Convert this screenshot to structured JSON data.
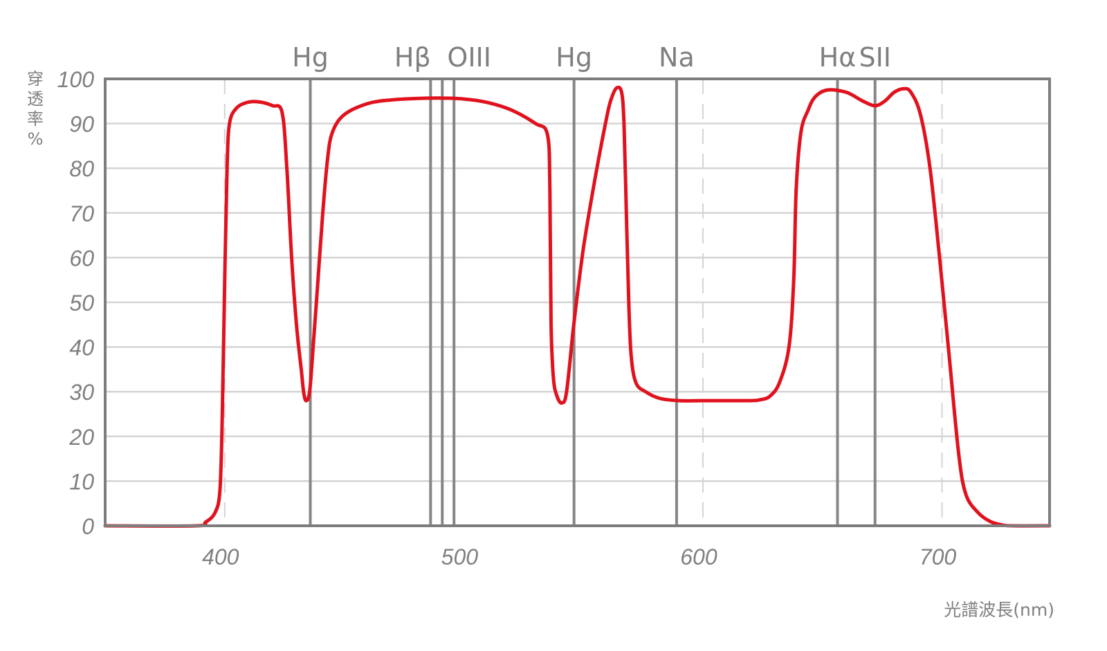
{
  "chart_data": {
    "type": "line",
    "xlabel": "光譜波長(nm)",
    "ylabel": "穿透率%",
    "xlim": [
      350,
      745
    ],
    "ylim": [
      0,
      100
    ],
    "x_ticks": [
      400,
      500,
      600,
      700
    ],
    "y_ticks": [
      0,
      10,
      20,
      30,
      40,
      50,
      60,
      70,
      80,
      90,
      100
    ],
    "minor_x_gridlines": [
      400,
      600,
      700
    ],
    "grid": true,
    "colors": {
      "curve": "#e0121d",
      "grid": "#d4d4d4",
      "frame": "#7d7d7d",
      "emission_line": "#868686",
      "text": "#7f7f7f"
    },
    "emission_lines": [
      {
        "label": "Hg",
        "wavelength": 435.8
      },
      {
        "label": "Hβ",
        "wavelength": 486.1
      },
      {
        "label": "",
        "wavelength": 491.0
      },
      {
        "label": "OIII",
        "wavelength": 495.9
      },
      {
        "label": "Hg",
        "wavelength": 546.1
      },
      {
        "label": "Na",
        "wavelength": 589.0
      },
      {
        "label": "Hα",
        "wavelength": 656.3
      },
      {
        "label": "SII",
        "wavelength": 672.0
      }
    ],
    "series": [
      {
        "values": [
          [
            350,
            0
          ],
          [
            388,
            0
          ],
          [
            392,
            0.8
          ],
          [
            396,
            3
          ],
          [
            398,
            8
          ],
          [
            399,
            25
          ],
          [
            400,
            55
          ],
          [
            401,
            80
          ],
          [
            402,
            90
          ],
          [
            405,
            93.5
          ],
          [
            410,
            94.8
          ],
          [
            415,
            94.8
          ],
          [
            420,
            94
          ],
          [
            424,
            92.5
          ],
          [
            426,
            80
          ],
          [
            428,
            60
          ],
          [
            430,
            45
          ],
          [
            432,
            35
          ],
          [
            433,
            30
          ],
          [
            434,
            28
          ],
          [
            435.5,
            30
          ],
          [
            437,
            40
          ],
          [
            439,
            55
          ],
          [
            441,
            70
          ],
          [
            443,
            82
          ],
          [
            445,
            88
          ],
          [
            450,
            92
          ],
          [
            460,
            94.5
          ],
          [
            470,
            95.3
          ],
          [
            480,
            95.6
          ],
          [
            490,
            95.7
          ],
          [
            500,
            95.5
          ],
          [
            510,
            94.7
          ],
          [
            520,
            93
          ],
          [
            530,
            90
          ],
          [
            535,
            87.5
          ],
          [
            536,
            75
          ],
          [
            536.5,
            45
          ],
          [
            537.5,
            33
          ],
          [
            539,
            29
          ],
          [
            541,
            27.5
          ],
          [
            543,
            30
          ],
          [
            546,
            45
          ],
          [
            550,
            62
          ],
          [
            555,
            78
          ],
          [
            560,
            92
          ],
          [
            562,
            96
          ],
          [
            564,
            98
          ],
          [
            566,
            97
          ],
          [
            567,
            90
          ],
          [
            568,
            70
          ],
          [
            569,
            50
          ],
          [
            570,
            38
          ],
          [
            572,
            32
          ],
          [
            576,
            30
          ],
          [
            582,
            28.5
          ],
          [
            590,
            28
          ],
          [
            600,
            28
          ],
          [
            610,
            28
          ],
          [
            620,
            28
          ],
          [
            624,
            28.2
          ],
          [
            628,
            29
          ],
          [
            632,
            32
          ],
          [
            636,
            40
          ],
          [
            638,
            55
          ],
          [
            639,
            75
          ],
          [
            641,
            88
          ],
          [
            644,
            93
          ],
          [
            647,
            96
          ],
          [
            652,
            97.5
          ],
          [
            660,
            97
          ],
          [
            667,
            95
          ],
          [
            672,
            94
          ],
          [
            676,
            95
          ],
          [
            680,
            97
          ],
          [
            684,
            97.8
          ],
          [
            687,
            97
          ],
          [
            691,
            92
          ],
          [
            695,
            80
          ],
          [
            699,
            60
          ],
          [
            703,
            38
          ],
          [
            707,
            16
          ],
          [
            710,
            7
          ],
          [
            715,
            3
          ],
          [
            720,
            1
          ],
          [
            725,
            0.2
          ],
          [
            730,
            0
          ],
          [
            745,
            0
          ]
        ]
      }
    ]
  }
}
